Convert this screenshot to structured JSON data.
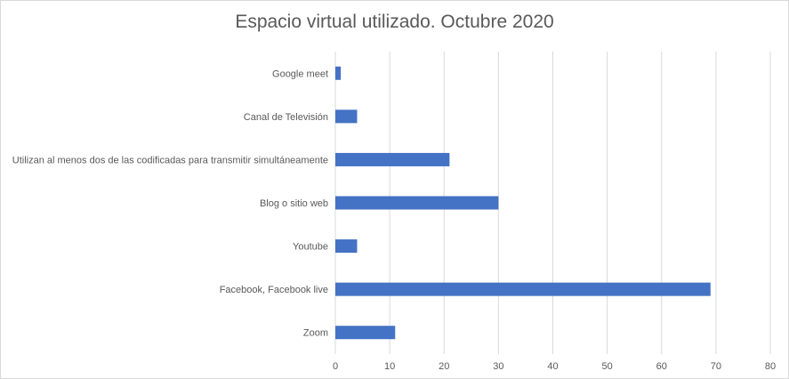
{
  "chart_data": {
    "type": "bar",
    "orientation": "horizontal",
    "title": "Espacio virtual utilizado. Octubre 2020",
    "categories": [
      "Google meet",
      "Canal de Televisión",
      "Utilizan al menos dos de las codificadas para transmitir simultáneamente",
      "Blog o sitio web",
      "Youtube",
      "Facebook, Facebook live",
      "Zoom"
    ],
    "values": [
      1,
      4,
      21,
      30,
      4,
      69,
      11
    ],
    "xlim": [
      0,
      80
    ],
    "xticks": [
      0,
      10,
      20,
      30,
      40,
      50,
      60,
      70,
      80
    ],
    "grid": true,
    "legend": "none",
    "colors": {
      "bar": "#4472c4",
      "grid": "#d9d9d9",
      "text": "#595959"
    }
  }
}
